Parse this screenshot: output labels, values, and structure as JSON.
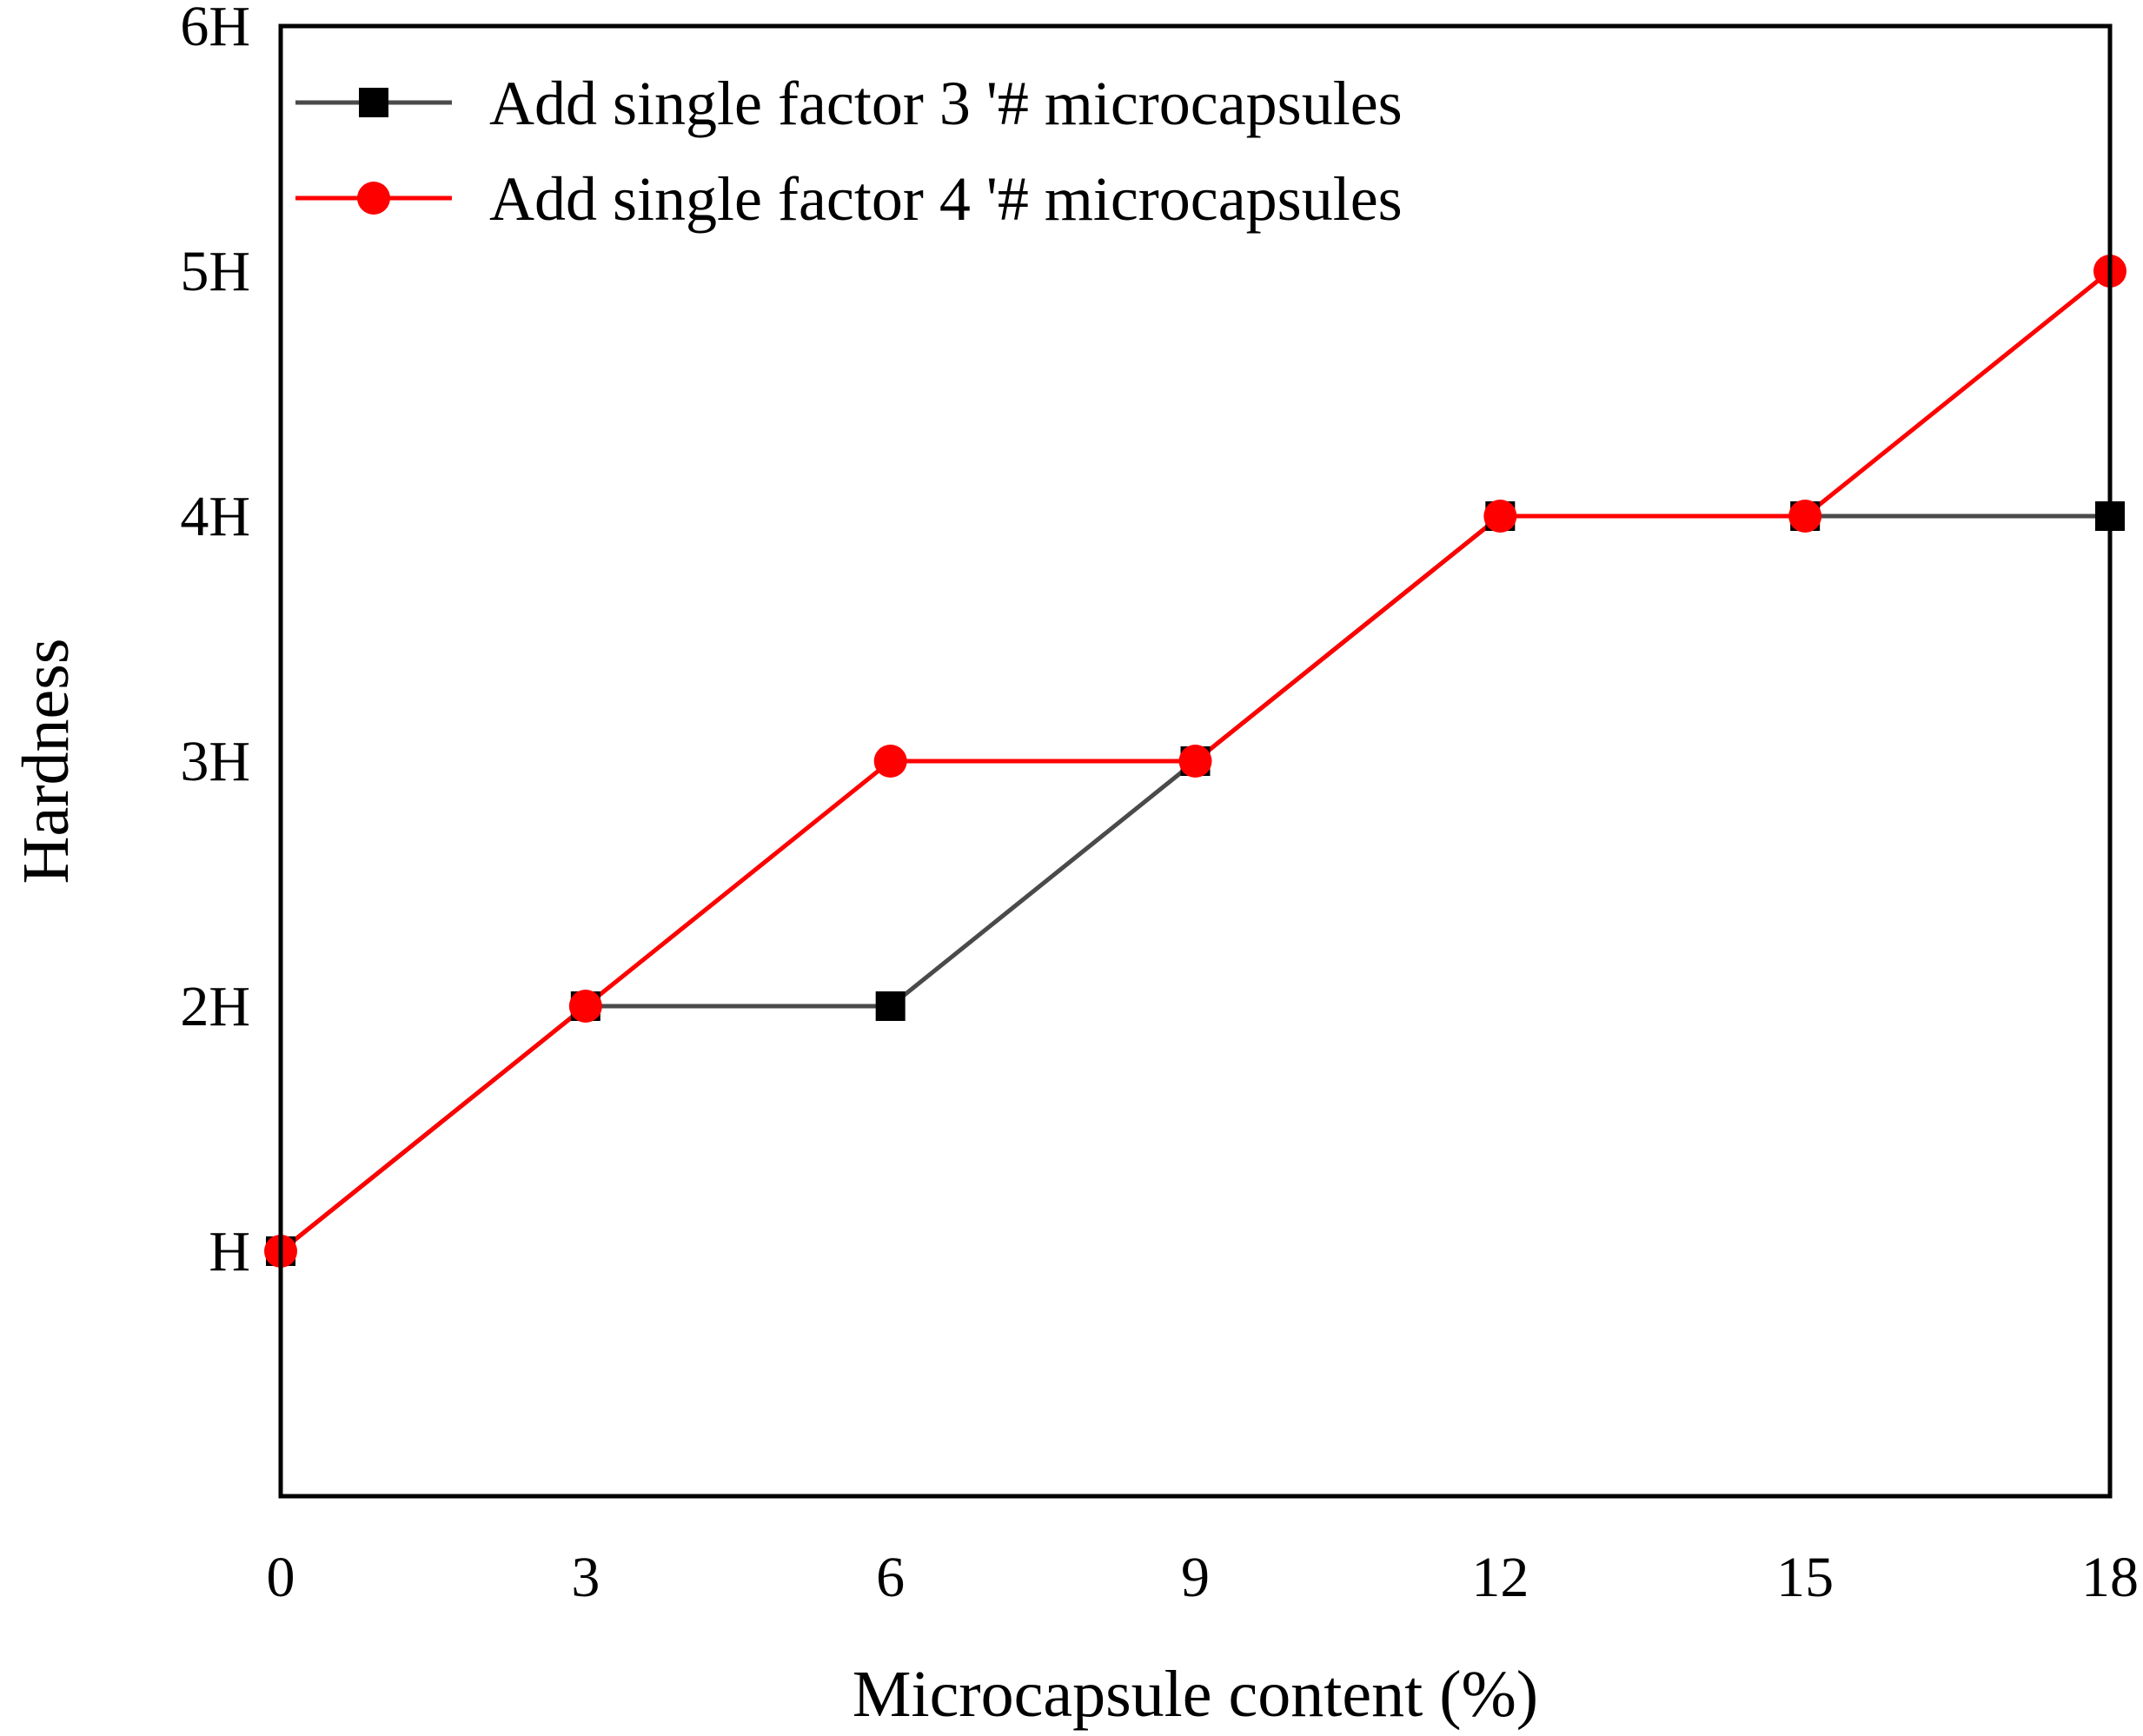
{
  "chart_data": {
    "type": "line",
    "title": "",
    "xlabel": "Microcapsule content (%)",
    "ylabel": "Hardness",
    "x": [
      0,
      3,
      6,
      9,
      12,
      15,
      18
    ],
    "x_ticks": [
      "0",
      "3",
      "6",
      "9",
      "12",
      "15",
      "18"
    ],
    "xlim": [
      0,
      18
    ],
    "y_ticks": [
      {
        "value": 1,
        "label": "H"
      },
      {
        "value": 2,
        "label": "2H"
      },
      {
        "value": 3,
        "label": "3H"
      },
      {
        "value": 4,
        "label": "4H"
      },
      {
        "value": 5,
        "label": "5H"
      },
      {
        "value": 6,
        "label": "6H"
      }
    ],
    "ylim": [
      0,
      6
    ],
    "grid": false,
    "legend_position": "top-left",
    "series": [
      {
        "name": "Add single factor 3 '# microcapsules",
        "marker": "square",
        "color": "#4a4a4a",
        "marker_color": "#000000",
        "values": [
          1,
          2,
          2,
          3,
          4,
          4,
          4
        ]
      },
      {
        "name": "Add single factor 4 '# microcapsules",
        "marker": "circle",
        "color": "#ff0000",
        "marker_color": "#ff0000",
        "values": [
          1,
          2,
          3,
          3,
          4,
          4,
          5
        ]
      }
    ]
  }
}
